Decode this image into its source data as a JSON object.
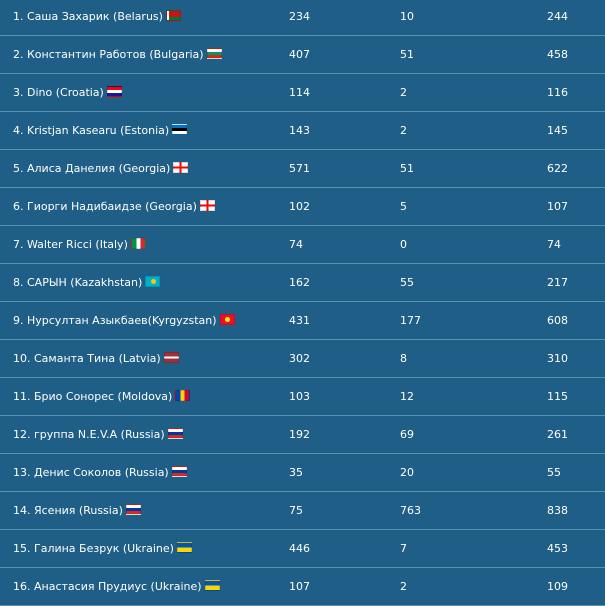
{
  "rows": [
    {
      "name": "1. Саша Захарик (Belarus)",
      "flag": "belarus-flag-icon",
      "a": "234",
      "b": "10",
      "total": "244"
    },
    {
      "name": "2. Константин Работов (Bulgaria)",
      "flag": "bulgaria-flag-icon",
      "a": "407",
      "b": "51",
      "total": "458"
    },
    {
      "name": "3. Dino (Croatia)",
      "flag": "croatia-flag-icon",
      "a": "114",
      "b": "2",
      "total": "116"
    },
    {
      "name": "4. Kristjan Kasearu (Estonia)",
      "flag": "estonia-flag-icon",
      "a": "143",
      "b": "2",
      "total": "145"
    },
    {
      "name": "5. Алиса Данелия (Georgia)",
      "flag": "georgia-flag-icon",
      "a": "571",
      "b": "51",
      "total": "622"
    },
    {
      "name": "6. Гиорги Надибаидзе (Georgia)",
      "flag": "georgia-flag-icon",
      "a": "102",
      "b": "5",
      "total": "107"
    },
    {
      "name": "7. Walter Ricci (Italy)",
      "flag": "italy-flag-icon",
      "a": "74",
      "b": "0",
      "total": "74"
    },
    {
      "name": "8. САРЫН (Kazakhstan)",
      "flag": "kazakhstan-flag-icon",
      "a": "162",
      "b": "55",
      "total": "217"
    },
    {
      "name": "9. Нурсултан Азыкбаев(Kyrgyzstan)",
      "flag": "kyrgyzstan-flag-icon",
      "a": "431",
      "b": "177",
      "total": "608"
    },
    {
      "name": "10. Саманта Тина (Latvia)",
      "flag": "latvia-flag-icon",
      "a": "302",
      "b": "8",
      "total": "310"
    },
    {
      "name": "11. Брио Сонорес (Moldova)",
      "flag": "moldova-flag-icon",
      "a": "103",
      "b": "12",
      "total": "115"
    },
    {
      "name": "12. группа N.E.V.A (Russia)",
      "flag": "russia-flag-icon",
      "a": "192",
      "b": "69",
      "total": "261"
    },
    {
      "name": "13. Денис Соколов (Russia)",
      "flag": "russia-flag-icon",
      "a": "35",
      "b": "20",
      "total": "55"
    },
    {
      "name": "14. Ясения (Russia)",
      "flag": "russia-flag-icon",
      "a": "75",
      "b": "763",
      "total": "838"
    },
    {
      "name": "15. Галина Безрук (Ukraine)",
      "flag": "ukraine-flag-icon",
      "a": "446",
      "b": "7",
      "total": "453"
    },
    {
      "name": "16. Анастасия Прудиус (Ukraine)",
      "flag": "ukraine-flag-icon",
      "a": "107",
      "b": "2",
      "total": "109"
    }
  ]
}
